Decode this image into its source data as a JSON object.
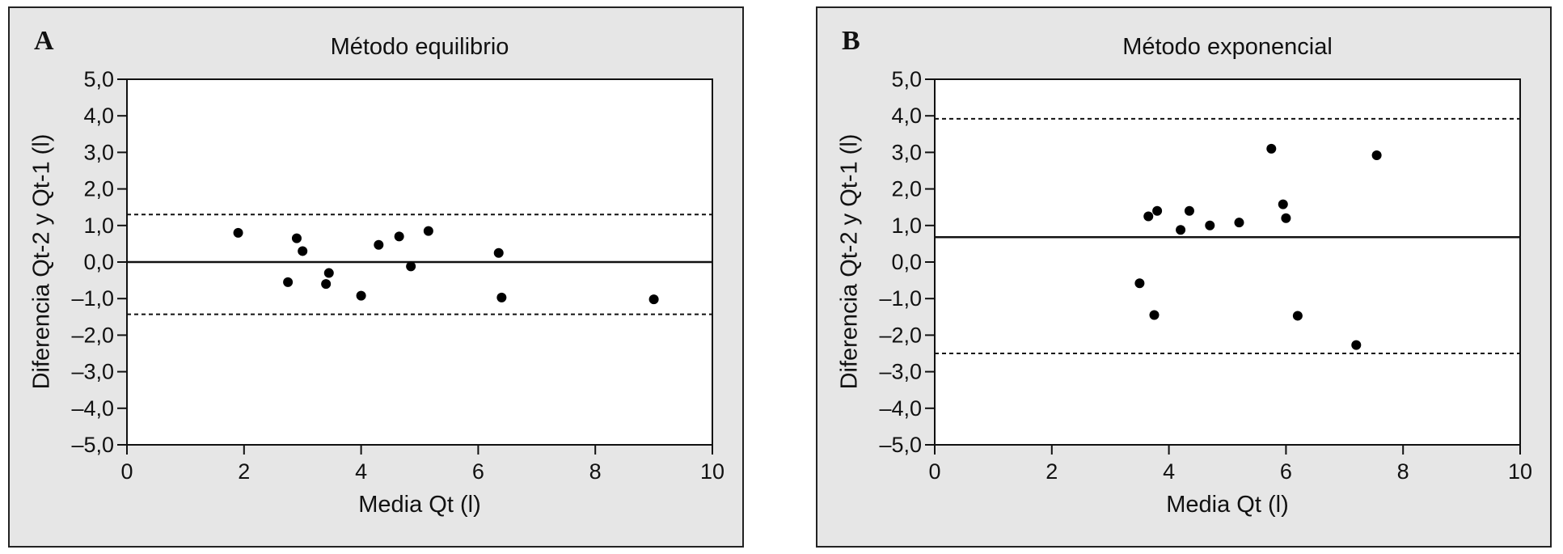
{
  "chart_data": [
    {
      "type": "scatter",
      "panel_label": "A",
      "title": "Método equilibrio",
      "xlabel": "Media Qt (l)",
      "ylabel": "Diferencia Qt-2 y Qt-1 (l)",
      "xlim": [
        0,
        10
      ],
      "ylim": [
        -5.0,
        5.0
      ],
      "x_ticks": [
        0,
        2,
        4,
        6,
        8,
        10
      ],
      "x_tick_labels": [
        "0",
        "2",
        "4",
        "6",
        "8",
        "10"
      ],
      "y_ticks": [
        5,
        4,
        3,
        2,
        1,
        0,
        -1,
        -2,
        -3,
        -4,
        -5
      ],
      "y_tick_labels": [
        "5,0",
        "4,0",
        "3,0",
        "2,0",
        "1,0",
        "0,0",
        "–1,0",
        "–2,0",
        "–3,0",
        "–4,0",
        "–5,0"
      ],
      "grid": false,
      "mean_line": 0.0,
      "limit_lines": [
        1.3,
        -1.43
      ],
      "points": [
        {
          "x": 1.9,
          "y": 0.8
        },
        {
          "x": 2.75,
          "y": -0.55
        },
        {
          "x": 2.9,
          "y": 0.65
        },
        {
          "x": 3.0,
          "y": 0.3
        },
        {
          "x": 3.4,
          "y": -0.6
        },
        {
          "x": 3.45,
          "y": -0.3
        },
        {
          "x": 4.0,
          "y": -0.92
        },
        {
          "x": 4.3,
          "y": 0.47
        },
        {
          "x": 4.65,
          "y": 0.7
        },
        {
          "x": 4.85,
          "y": -0.12
        },
        {
          "x": 5.15,
          "y": 0.85
        },
        {
          "x": 6.35,
          "y": 0.25
        },
        {
          "x": 6.4,
          "y": -0.97
        },
        {
          "x": 9.0,
          "y": -1.02
        }
      ]
    },
    {
      "type": "scatter",
      "panel_label": "B",
      "title": "Método exponencial",
      "xlabel": "Media Qt (l)",
      "ylabel": "Diferencia Qt-2 y Qt-1 (l)",
      "xlim": [
        0,
        10
      ],
      "ylim": [
        -5.0,
        5.0
      ],
      "x_ticks": [
        0,
        2,
        4,
        6,
        8,
        10
      ],
      "x_tick_labels": [
        "0",
        "2",
        "4",
        "6",
        "8",
        "10"
      ],
      "y_ticks": [
        5,
        4,
        3,
        2,
        1,
        0,
        -1,
        -2,
        -3,
        -4,
        -5
      ],
      "y_tick_labels": [
        "5,0",
        "4,0",
        "3,0",
        "2,0",
        "1,0",
        "0,0",
        "–1,0",
        "–2,0",
        "–3,0",
        "–4,0",
        "–5,0"
      ],
      "grid": false,
      "mean_line": 0.68,
      "limit_lines": [
        3.92,
        -2.5
      ],
      "points": [
        {
          "x": 3.5,
          "y": -0.58
        },
        {
          "x": 3.65,
          "y": 1.25
        },
        {
          "x": 3.75,
          "y": -1.45
        },
        {
          "x": 3.8,
          "y": 1.4
        },
        {
          "x": 4.2,
          "y": 0.88
        },
        {
          "x": 4.35,
          "y": 1.4
        },
        {
          "x": 4.7,
          "y": 1.0
        },
        {
          "x": 5.2,
          "y": 1.08
        },
        {
          "x": 5.75,
          "y": 3.1
        },
        {
          "x": 5.95,
          "y": 1.58
        },
        {
          "x": 6.0,
          "y": 1.2
        },
        {
          "x": 6.2,
          "y": -1.47
        },
        {
          "x": 7.2,
          "y": -2.27
        },
        {
          "x": 7.55,
          "y": 2.92
        }
      ]
    }
  ]
}
